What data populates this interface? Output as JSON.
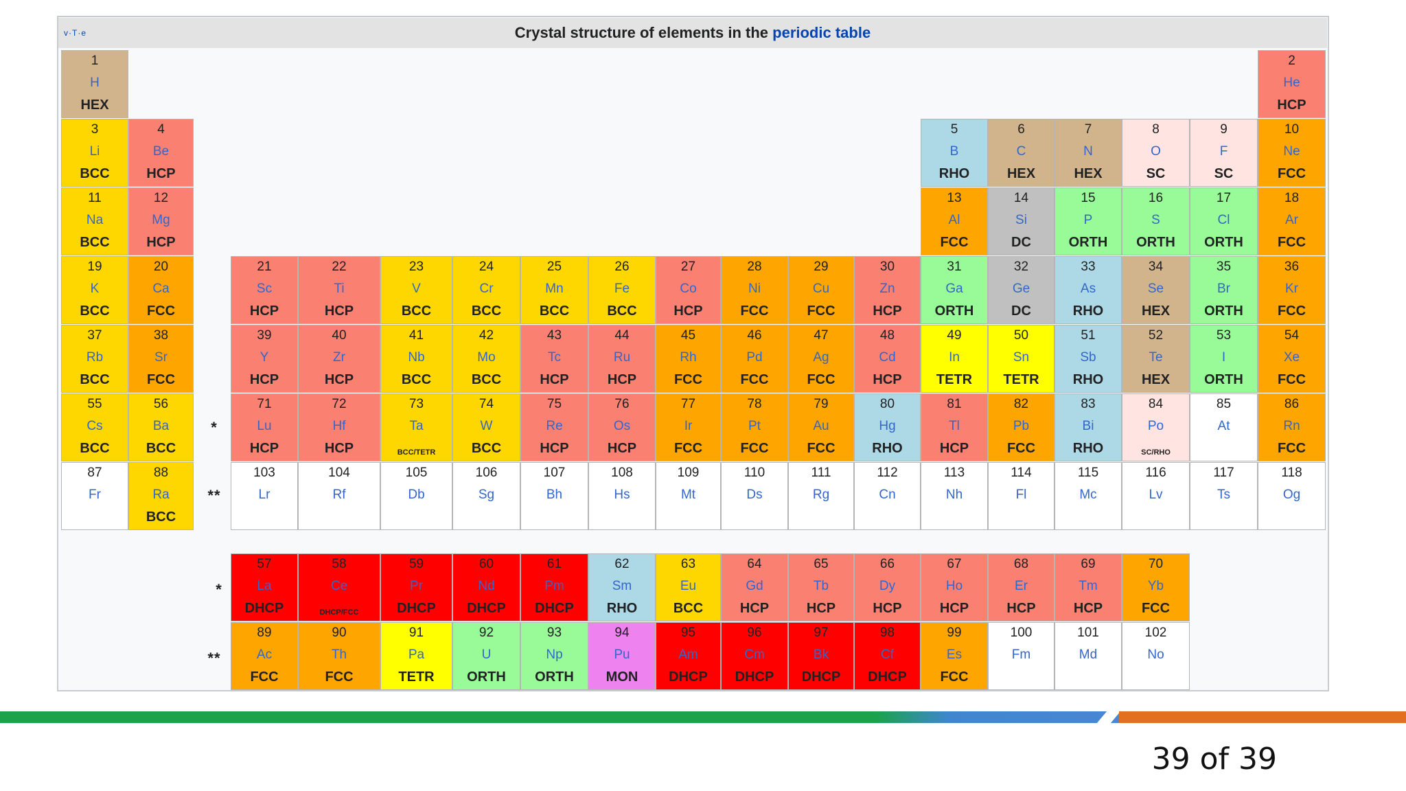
{
  "title": {
    "prefix": "Crystal structure of elements in the",
    "link": "periodic table"
  },
  "nav": {
    "vte": "v·T·e"
  },
  "markers": {
    "lanthanide": "*",
    "actinide": "**"
  },
  "page_number": "39 of 39",
  "colors": {
    "HEX": "#d2b48c",
    "HCP": "#fa8072",
    "BCC": "#ffd700",
    "FCC": "#ffa500",
    "RHO": "#add8e6",
    "SC": "#ffe4e1",
    "DC": "#c0c0c0",
    "ORTH": "#98fb98",
    "TETR": "#ffff00",
    "DHCP": "#ff0000",
    "DHCP/FCC": "#ff0000",
    "BCC/TETR": "#ffd700",
    "SC/RHO": "#ffe4e1",
    "MON": "#ee82ee",
    "": "#ffffff",
    "accent_green": "#1aa34a",
    "accent_blue": "#4a86d4",
    "accent_orange": "#e37021"
  },
  "elements": [
    {
      "n": "1",
      "s": "H",
      "st": "HEX",
      "row": 1,
      "col": 1
    },
    {
      "n": "2",
      "s": "He",
      "st": "HCP",
      "row": 1,
      "col": 19
    },
    {
      "n": "3",
      "s": "Li",
      "st": "BCC",
      "row": 2,
      "col": 1
    },
    {
      "n": "4",
      "s": "Be",
      "st": "HCP",
      "row": 2,
      "col": 2
    },
    {
      "n": "5",
      "s": "B",
      "st": "RHO",
      "row": 2,
      "col": 14
    },
    {
      "n": "6",
      "s": "C",
      "st": "HEX",
      "row": 2,
      "col": 15
    },
    {
      "n": "7",
      "s": "N",
      "st": "HEX",
      "row": 2,
      "col": 16
    },
    {
      "n": "8",
      "s": "O",
      "st": "SC",
      "row": 2,
      "col": 17
    },
    {
      "n": "9",
      "s": "F",
      "st": "SC",
      "row": 2,
      "col": 18
    },
    {
      "n": "10",
      "s": "Ne",
      "st": "FCC",
      "row": 2,
      "col": 19
    },
    {
      "n": "11",
      "s": "Na",
      "st": "BCC",
      "row": 3,
      "col": 1
    },
    {
      "n": "12",
      "s": "Mg",
      "st": "HCP",
      "row": 3,
      "col": 2
    },
    {
      "n": "13",
      "s": "Al",
      "st": "FCC",
      "row": 3,
      "col": 14
    },
    {
      "n": "14",
      "s": "Si",
      "st": "DC",
      "row": 3,
      "col": 15
    },
    {
      "n": "15",
      "s": "P",
      "st": "ORTH",
      "row": 3,
      "col": 16
    },
    {
      "n": "16",
      "s": "S",
      "st": "ORTH",
      "row": 3,
      "col": 17
    },
    {
      "n": "17",
      "s": "Cl",
      "st": "ORTH",
      "row": 3,
      "col": 18
    },
    {
      "n": "18",
      "s": "Ar",
      "st": "FCC",
      "row": 3,
      "col": 19
    },
    {
      "n": "19",
      "s": "K",
      "st": "BCC",
      "row": 4,
      "col": 1
    },
    {
      "n": "20",
      "s": "Ca",
      "st": "FCC",
      "row": 4,
      "col": 2
    },
    {
      "n": "21",
      "s": "Sc",
      "st": "HCP",
      "row": 4,
      "col": 4
    },
    {
      "n": "22",
      "s": "Ti",
      "st": "HCP",
      "row": 4,
      "col": 5
    },
    {
      "n": "23",
      "s": "V",
      "st": "BCC",
      "row": 4,
      "col": 6
    },
    {
      "n": "24",
      "s": "Cr",
      "st": "BCC",
      "row": 4,
      "col": 7
    },
    {
      "n": "25",
      "s": "Mn",
      "st": "BCC",
      "row": 4,
      "col": 8
    },
    {
      "n": "26",
      "s": "Fe",
      "st": "BCC",
      "row": 4,
      "col": 9
    },
    {
      "n": "27",
      "s": "Co",
      "st": "HCP",
      "row": 4,
      "col": 10
    },
    {
      "n": "28",
      "s": "Ni",
      "st": "FCC",
      "row": 4,
      "col": 11
    },
    {
      "n": "29",
      "s": "Cu",
      "st": "FCC",
      "row": 4,
      "col": 12
    },
    {
      "n": "30",
      "s": "Zn",
      "st": "HCP",
      "row": 4,
      "col": 13
    },
    {
      "n": "31",
      "s": "Ga",
      "st": "ORTH",
      "row": 4,
      "col": 14
    },
    {
      "n": "32",
      "s": "Ge",
      "st": "DC",
      "row": 4,
      "col": 15
    },
    {
      "n": "33",
      "s": "As",
      "st": "RHO",
      "row": 4,
      "col": 16
    },
    {
      "n": "34",
      "s": "Se",
      "st": "HEX",
      "row": 4,
      "col": 17
    },
    {
      "n": "35",
      "s": "Br",
      "st": "ORTH",
      "row": 4,
      "col": 18
    },
    {
      "n": "36",
      "s": "Kr",
      "st": "FCC",
      "row": 4,
      "col": 19
    },
    {
      "n": "37",
      "s": "Rb",
      "st": "BCC",
      "row": 5,
      "col": 1
    },
    {
      "n": "38",
      "s": "Sr",
      "st": "FCC",
      "row": 5,
      "col": 2
    },
    {
      "n": "39",
      "s": "Y",
      "st": "HCP",
      "row": 5,
      "col": 4
    },
    {
      "n": "40",
      "s": "Zr",
      "st": "HCP",
      "row": 5,
      "col": 5
    },
    {
      "n": "41",
      "s": "Nb",
      "st": "BCC",
      "row": 5,
      "col": 6
    },
    {
      "n": "42",
      "s": "Mo",
      "st": "BCC",
      "row": 5,
      "col": 7
    },
    {
      "n": "43",
      "s": "Tc",
      "st": "HCP",
      "row": 5,
      "col": 8
    },
    {
      "n": "44",
      "s": "Ru",
      "st": "HCP",
      "row": 5,
      "col": 9
    },
    {
      "n": "45",
      "s": "Rh",
      "st": "FCC",
      "row": 5,
      "col": 10
    },
    {
      "n": "46",
      "s": "Pd",
      "st": "FCC",
      "row": 5,
      "col": 11
    },
    {
      "n": "47",
      "s": "Ag",
      "st": "FCC",
      "row": 5,
      "col": 12
    },
    {
      "n": "48",
      "s": "Cd",
      "st": "HCP",
      "row": 5,
      "col": 13
    },
    {
      "n": "49",
      "s": "In",
      "st": "TETR",
      "row": 5,
      "col": 14
    },
    {
      "n": "50",
      "s": "Sn",
      "st": "TETR",
      "row": 5,
      "col": 15
    },
    {
      "n": "51",
      "s": "Sb",
      "st": "RHO",
      "row": 5,
      "col": 16
    },
    {
      "n": "52",
      "s": "Te",
      "st": "HEX",
      "row": 5,
      "col": 17
    },
    {
      "n": "53",
      "s": "I",
      "st": "ORTH",
      "row": 5,
      "col": 18
    },
    {
      "n": "54",
      "s": "Xe",
      "st": "FCC",
      "row": 5,
      "col": 19
    },
    {
      "n": "55",
      "s": "Cs",
      "st": "BCC",
      "row": 6,
      "col": 1
    },
    {
      "n": "56",
      "s": "Ba",
      "st": "BCC",
      "row": 6,
      "col": 2
    },
    {
      "n": "71",
      "s": "Lu",
      "st": "HCP",
      "row": 6,
      "col": 4
    },
    {
      "n": "72",
      "s": "Hf",
      "st": "HCP",
      "row": 6,
      "col": 5
    },
    {
      "n": "73",
      "s": "Ta",
      "st": "BCC/TETR",
      "row": 6,
      "col": 6
    },
    {
      "n": "74",
      "s": "W",
      "st": "BCC",
      "row": 6,
      "col": 7
    },
    {
      "n": "75",
      "s": "Re",
      "st": "HCP",
      "row": 6,
      "col": 8
    },
    {
      "n": "76",
      "s": "Os",
      "st": "HCP",
      "row": 6,
      "col": 9
    },
    {
      "n": "77",
      "s": "Ir",
      "st": "FCC",
      "row": 6,
      "col": 10
    },
    {
      "n": "78",
      "s": "Pt",
      "st": "FCC",
      "row": 6,
      "col": 11
    },
    {
      "n": "79",
      "s": "Au",
      "st": "FCC",
      "row": 6,
      "col": 12
    },
    {
      "n": "80",
      "s": "Hg",
      "st": "RHO",
      "row": 6,
      "col": 13
    },
    {
      "n": "81",
      "s": "Tl",
      "st": "HCP",
      "row": 6,
      "col": 14
    },
    {
      "n": "82",
      "s": "Pb",
      "st": "FCC",
      "row": 6,
      "col": 15
    },
    {
      "n": "83",
      "s": "Bi",
      "st": "RHO",
      "row": 6,
      "col": 16
    },
    {
      "n": "84",
      "s": "Po",
      "st": "SC/RHO",
      "row": 6,
      "col": 17
    },
    {
      "n": "85",
      "s": "At",
      "st": "",
      "row": 6,
      "col": 18
    },
    {
      "n": "86",
      "s": "Rn",
      "st": "FCC",
      "row": 6,
      "col": 19
    },
    {
      "n": "87",
      "s": "Fr",
      "st": "",
      "row": 7,
      "col": 1
    },
    {
      "n": "88",
      "s": "Ra",
      "st": "BCC",
      "row": 7,
      "col": 2
    },
    {
      "n": "103",
      "s": "Lr",
      "st": "",
      "row": 7,
      "col": 4
    },
    {
      "n": "104",
      "s": "Rf",
      "st": "",
      "row": 7,
      "col": 5
    },
    {
      "n": "105",
      "s": "Db",
      "st": "",
      "row": 7,
      "col": 6
    },
    {
      "n": "106",
      "s": "Sg",
      "st": "",
      "row": 7,
      "col": 7
    },
    {
      "n": "107",
      "s": "Bh",
      "st": "",
      "row": 7,
      "col": 8
    },
    {
      "n": "108",
      "s": "Hs",
      "st": "",
      "row": 7,
      "col": 9
    },
    {
      "n": "109",
      "s": "Mt",
      "st": "",
      "row": 7,
      "col": 10
    },
    {
      "n": "110",
      "s": "Ds",
      "st": "",
      "row": 7,
      "col": 11
    },
    {
      "n": "111",
      "s": "Rg",
      "st": "",
      "row": 7,
      "col": 12
    },
    {
      "n": "112",
      "s": "Cn",
      "st": "",
      "row": 7,
      "col": 13
    },
    {
      "n": "113",
      "s": "Nh",
      "st": "",
      "row": 7,
      "col": 14
    },
    {
      "n": "114",
      "s": "Fl",
      "st": "",
      "row": 7,
      "col": 15
    },
    {
      "n": "115",
      "s": "Mc",
      "st": "",
      "row": 7,
      "col": 16
    },
    {
      "n": "116",
      "s": "Lv",
      "st": "",
      "row": 7,
      "col": 17
    },
    {
      "n": "117",
      "s": "Ts",
      "st": "",
      "row": 7,
      "col": 18
    },
    {
      "n": "118",
      "s": "Og",
      "st": "",
      "row": 7,
      "col": 19
    },
    {
      "n": "57",
      "s": "La",
      "st": "DHCP",
      "row": 8,
      "col": 4
    },
    {
      "n": "58",
      "s": "Ce",
      "st": "DHCP/FCC",
      "row": 8,
      "col": 5
    },
    {
      "n": "59",
      "s": "Pr",
      "st": "DHCP",
      "row": 8,
      "col": 6
    },
    {
      "n": "60",
      "s": "Nd",
      "st": "DHCP",
      "row": 8,
      "col": 7
    },
    {
      "n": "61",
      "s": "Pm",
      "st": "DHCP",
      "row": 8,
      "col": 8
    },
    {
      "n": "62",
      "s": "Sm",
      "st": "RHO",
      "row": 8,
      "col": 9
    },
    {
      "n": "63",
      "s": "Eu",
      "st": "BCC",
      "row": 8,
      "col": 10
    },
    {
      "n": "64",
      "s": "Gd",
      "st": "HCP",
      "row": 8,
      "col": 11
    },
    {
      "n": "65",
      "s": "Tb",
      "st": "HCP",
      "row": 8,
      "col": 12
    },
    {
      "n": "66",
      "s": "Dy",
      "st": "HCP",
      "row": 8,
      "col": 13
    },
    {
      "n": "67",
      "s": "Ho",
      "st": "HCP",
      "row": 8,
      "col": 14
    },
    {
      "n": "68",
      "s": "Er",
      "st": "HCP",
      "row": 8,
      "col": 15
    },
    {
      "n": "69",
      "s": "Tm",
      "st": "HCP",
      "row": 8,
      "col": 16
    },
    {
      "n": "70",
      "s": "Yb",
      "st": "FCC",
      "row": 8,
      "col": 17
    },
    {
      "n": "89",
      "s": "Ac",
      "st": "FCC",
      "row": 9,
      "col": 4
    },
    {
      "n": "90",
      "s": "Th",
      "st": "FCC",
      "row": 9,
      "col": 5
    },
    {
      "n": "91",
      "s": "Pa",
      "st": "TETR",
      "row": 9,
      "col": 6
    },
    {
      "n": "92",
      "s": "U",
      "st": "ORTH",
      "row": 9,
      "col": 7
    },
    {
      "n": "93",
      "s": "Np",
      "st": "ORTH",
      "row": 9,
      "col": 8
    },
    {
      "n": "94",
      "s": "Pu",
      "st": "MON",
      "row": 9,
      "col": 9
    },
    {
      "n": "95",
      "s": "Am",
      "st": "DHCP",
      "row": 9,
      "col": 10
    },
    {
      "n": "96",
      "s": "Cm",
      "st": "DHCP",
      "row": 9,
      "col": 11
    },
    {
      "n": "97",
      "s": "Bk",
      "st": "DHCP",
      "row": 9,
      "col": 12
    },
    {
      "n": "98",
      "s": "Cf",
      "st": "DHCP",
      "row": 9,
      "col": 13
    },
    {
      "n": "99",
      "s": "Es",
      "st": "FCC",
      "row": 9,
      "col": 14
    },
    {
      "n": "100",
      "s": "Fm",
      "st": "",
      "row": 9,
      "col": 15
    },
    {
      "n": "101",
      "s": "Md",
      "st": "",
      "row": 9,
      "col": 16
    },
    {
      "n": "102",
      "s": "No",
      "st": "",
      "row": 9,
      "col": 17
    }
  ]
}
